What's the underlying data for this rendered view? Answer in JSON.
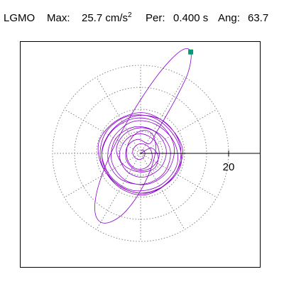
{
  "header": {
    "station": "LGMO",
    "max_label": "Max:",
    "max_value": "25.7",
    "max_unit": "cm/s",
    "max_unit_exp": "2",
    "per_label": "Per:",
    "per_value": "0.400 s",
    "ang_label": "Ang:",
    "ang_value": "63.7"
  },
  "colors": {
    "trace": "#8800cc",
    "marker": "#00997a",
    "axis": "#000000",
    "grid": "#777777"
  },
  "chart_data": {
    "type": "line",
    "description_type": "particle-motion hodogram (polar plot)",
    "radial_axis": {
      "tick_label": "20",
      "tick_value": 20,
      "grid_rings": [
        5,
        10,
        15,
        20
      ],
      "grid_spokes_deg": [
        0,
        30,
        60,
        90,
        120,
        150,
        180,
        210,
        240,
        270,
        300,
        330
      ]
    },
    "peak": {
      "amplitude": 25.7,
      "angle_deg": 63.7
    },
    "series": [
      {
        "trace": [
          [
            0.0,
            0.0
          ],
          [
            2.5,
            1.2
          ],
          [
            4.0,
            -0.8
          ],
          [
            3.0,
            -3.5
          ],
          [
            -0.5,
            -4.2
          ],
          [
            -4.0,
            -2.5
          ],
          [
            -5.5,
            1.0
          ],
          [
            -3.5,
            4.5
          ],
          [
            0.5,
            5.8
          ],
          [
            4.8,
            4.0
          ],
          [
            6.8,
            0.2
          ],
          [
            5.2,
            -4.6
          ],
          [
            0.6,
            -7.0
          ],
          [
            -4.6,
            -5.8
          ],
          [
            -7.4,
            -1.4
          ],
          [
            -6.2,
            3.6
          ],
          [
            -1.8,
            7.2
          ],
          [
            3.4,
            6.6
          ],
          [
            7.6,
            2.6
          ],
          [
            8.2,
            -2.8
          ],
          [
            4.2,
            -7.4
          ],
          [
            -1.8,
            -8.4
          ],
          [
            -6.8,
            -5.2
          ],
          [
            -8.8,
            0.4
          ],
          [
            -6.0,
            5.8
          ],
          [
            -0.6,
            8.6
          ],
          [
            5.4,
            7.2
          ],
          [
            9.0,
            1.8
          ],
          [
            8.0,
            -4.4
          ],
          [
            2.6,
            -8.8
          ],
          [
            -3.8,
            -8.0
          ],
          [
            -8.6,
            -3.2
          ],
          [
            -9.4,
            2.8
          ],
          [
            -5.2,
            7.6
          ],
          [
            1.0,
            9.2
          ],
          [
            6.6,
            6.0
          ],
          [
            9.6,
            0.4
          ],
          [
            7.0,
            -5.8
          ],
          [
            1.2,
            -9.4
          ],
          [
            -5.0,
            -7.6
          ],
          [
            -9.0,
            -1.8
          ],
          [
            -8.0,
            4.6
          ],
          [
            -3.0,
            8.4
          ],
          [
            3.2,
            8.0
          ],
          [
            8.0,
            3.4
          ],
          [
            9.2,
            -2.4
          ],
          [
            5.6,
            -7.2
          ],
          [
            -0.6,
            -9.0
          ],
          [
            -6.4,
            -6.0
          ],
          [
            -8.8,
            -0.4
          ],
          [
            -6.4,
            5.2
          ],
          [
            -1.0,
            8.0
          ],
          [
            4.4,
            6.6
          ],
          [
            7.6,
            1.6
          ],
          [
            6.2,
            -4.0
          ],
          [
            1.6,
            -7.0
          ],
          [
            -3.6,
            -6.0
          ],
          [
            -6.6,
            -1.6
          ],
          [
            -5.6,
            3.4
          ],
          [
            -1.4,
            6.0
          ],
          [
            3.2,
            5.0
          ],
          [
            5.8,
            1.0
          ],
          [
            4.6,
            -3.2
          ],
          [
            0.6,
            -5.4
          ],
          [
            -3.2,
            -4.0
          ],
          [
            -4.8,
            -0.2
          ],
          [
            -3.0,
            3.4
          ],
          [
            0.4,
            4.4
          ],
          [
            3.4,
            2.6
          ],
          [
            4.2,
            -0.8
          ],
          [
            2.2,
            -3.4
          ],
          [
            -1.0,
            -3.8
          ],
          [
            -3.2,
            -1.6
          ],
          [
            -3.0,
            1.6
          ],
          [
            -0.6,
            3.2
          ],
          [
            2.0,
            2.2
          ],
          [
            3.6,
            4.8
          ],
          [
            6.2,
            9.2
          ],
          [
            8.6,
            13.6
          ],
          [
            10.6,
            17.8
          ],
          [
            11.4,
            21.0
          ],
          [
            11.4,
            23.0
          ],
          [
            10.6,
            23.8
          ],
          [
            9.0,
            23.2
          ],
          [
            6.6,
            21.0
          ],
          [
            3.6,
            17.4
          ],
          [
            0.4,
            12.8
          ],
          [
            -2.8,
            7.6
          ],
          [
            -5.8,
            2.0
          ],
          [
            -8.2,
            -3.4
          ],
          [
            -9.8,
            -8.2
          ],
          [
            -10.4,
            -12.0
          ],
          [
            -10.0,
            -14.6
          ],
          [
            -8.6,
            -15.8
          ],
          [
            -6.4,
            -15.4
          ],
          [
            -3.8,
            -13.6
          ],
          [
            -1.2,
            -10.4
          ],
          [
            1.0,
            -6.6
          ],
          [
            2.6,
            -2.8
          ],
          [
            3.4,
            0.6
          ],
          [
            3.2,
            3.2
          ],
          [
            2.2,
            4.8
          ],
          [
            0.6,
            5.2
          ],
          [
            -1.2,
            4.4
          ],
          [
            -2.6,
            2.6
          ],
          [
            -3.2,
            0.4
          ],
          [
            -2.8,
            -1.8
          ],
          [
            -1.6,
            -3.2
          ],
          [
            0.2,
            -3.6
          ],
          [
            1.8,
            -2.8
          ],
          [
            2.6,
            -1.2
          ],
          [
            2.4,
            0.6
          ],
          [
            1.4,
            1.8
          ],
          [
            0.0,
            2.2
          ],
          [
            -1.2,
            1.6
          ],
          [
            -1.8,
            0.4
          ],
          [
            -1.4,
            -0.8
          ],
          [
            -0.4,
            -1.4
          ],
          [
            0.6,
            -1.0
          ],
          [
            1.0,
            0.0
          ],
          [
            0.6,
            0.8
          ],
          [
            0.0,
            0.6
          ]
        ]
      }
    ]
  }
}
